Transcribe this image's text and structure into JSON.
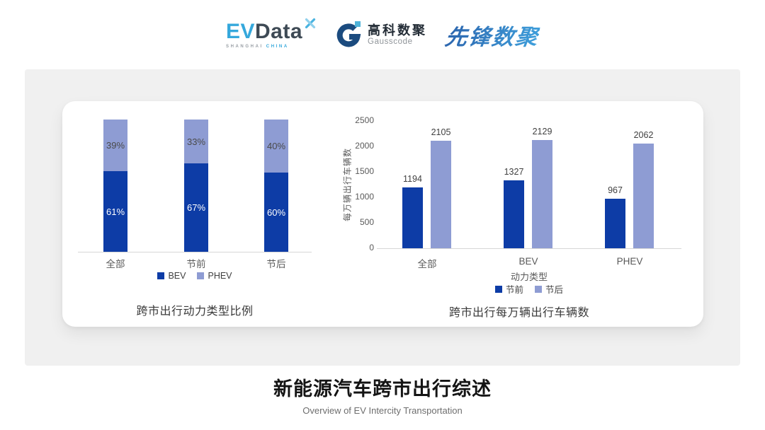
{
  "header": {
    "evdata": {
      "ev": "EV",
      "data": "Data",
      "sub_left": "SHANGHAI",
      "sub_right": "CHINA"
    },
    "gausscode": {
      "cn": "高科数聚",
      "en": "Gausscode"
    },
    "pioneer": {
      "text": "先锋数聚"
    }
  },
  "chart_data": [
    {
      "type": "bar",
      "subtype": "stacked_percent",
      "title": "跨市出行动力类型比例",
      "categories": [
        "全部",
        "节前",
        "节后"
      ],
      "series": [
        {
          "name": "BEV",
          "values": [
            61,
            67,
            60
          ],
          "color": "#0D3CA6",
          "label_color": "#FFFFFF"
        },
        {
          "name": "PHEV",
          "values": [
            39,
            33,
            40
          ],
          "color": "#8E9CD3",
          "label_color": "#4A4A4A"
        }
      ],
      "value_suffix": "%",
      "legend_position": "bottom",
      "grid": false
    },
    {
      "type": "bar",
      "subtype": "grouped",
      "title": "跨市出行每万辆出行车辆数",
      "categories": [
        "全部",
        "BEV",
        "PHEV"
      ],
      "series": [
        {
          "name": "节前",
          "values": [
            1194,
            1327,
            967
          ],
          "color": "#0D3CA6"
        },
        {
          "name": "节后",
          "values": [
            2105,
            2129,
            2062
          ],
          "color": "#8E9CD3"
        }
      ],
      "xlabel": "动力类型",
      "ylabel": "每万辆出行车辆数",
      "ylim": [
        0,
        2500
      ],
      "yticks": [
        0,
        500,
        1000,
        1500,
        2000,
        2500
      ],
      "legend_position": "bottom",
      "grid": false
    }
  ],
  "footer": {
    "title": "新能源汽车跨市出行综述",
    "subtitle": "Overview of EV Intercity Transportation"
  },
  "colors": {
    "bev_dark": "#0D3CA6",
    "phev_light": "#8E9CD3",
    "axis_line": "#D6D6D6",
    "panel_gray": "#F0F0F0",
    "evdata_blue": "#35A8DC",
    "evdata_slate": "#3E4A55",
    "gausscode_navy": "#1B4B7F",
    "gausscode_cyan": "#4FB3D9",
    "pioneer_blue": "#2F7BC0"
  }
}
